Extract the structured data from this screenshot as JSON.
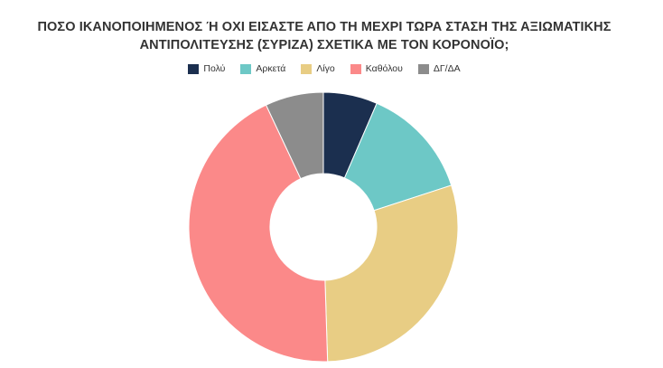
{
  "chart_data": {
    "type": "pie",
    "donut": true,
    "title_lines": [
      "ΠΟΣΟ ΙΚΑΝΟΠΟΙΗΜΕΝΟΣ Ή ΟΧΙ ΕΙΣΑΣΤΕ ΑΠΟ ΤΗ ΜΕΧΡΙ ΤΩΡΑ ΣΤΑΣΗ ΤΗΣ ΑΞΙΩΜΑΤΙΚΗΣ",
      "ΑΝΤΙΠΟΛΙΤΕΥΣΗΣ (ΣΥΡΙΖΑ) ΣΧΕΤΙΚΑ ΜΕ ΤΟΝ ΚΟΡΟΝΟΪΟ;"
    ],
    "legend_position": "top",
    "categories": [
      "Πολύ",
      "Αρκετά",
      "Λίγο",
      "Καθόλου",
      "ΔΓ/ΔΑ"
    ],
    "values": [
      6.5,
      13.5,
      29.5,
      43.5,
      7
    ],
    "colors": [
      "#1b2f4f",
      "#6dc8c6",
      "#e8cd84",
      "#fb8989",
      "#8c8c8c"
    ]
  }
}
